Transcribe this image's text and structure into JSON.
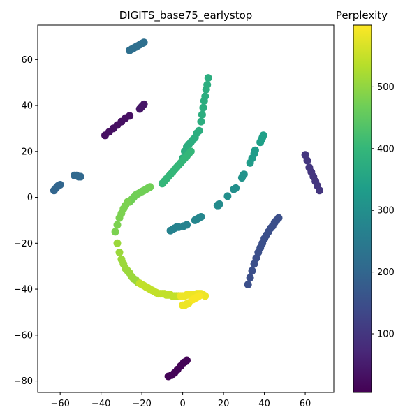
{
  "chart_data": {
    "type": "scatter",
    "title": "DIGITS_base75_earlystop",
    "xlabel": "",
    "ylabel": "",
    "xlim": [
      -71,
      74
    ],
    "ylim": [
      -85,
      75
    ],
    "xticks": [
      -60,
      -40,
      -20,
      0,
      20,
      40,
      60
    ],
    "yticks": [
      -80,
      -60,
      -40,
      -20,
      0,
      20,
      40,
      60
    ],
    "grid": false,
    "colorbar": {
      "label": "Perplexity",
      "range": [
        5,
        600
      ],
      "ticks": [
        100,
        200,
        300,
        400,
        500
      ],
      "colormap": "viridis"
    },
    "point_color_stops": [
      "#440154",
      "#482878",
      "#3e4989",
      "#31688e",
      "#26828e",
      "#1f9e89",
      "#35b779",
      "#6ece58",
      "#b5de2b",
      "#fde725"
    ],
    "series": [
      {
        "c": 10,
        "x": [
          -7,
          -5.5,
          -4,
          -2.5,
          -1,
          0.5,
          2
        ],
        "y": [
          -78,
          -77.5,
          -76.5,
          -75,
          -73.5,
          -72,
          -71
        ]
      },
      {
        "c": 30,
        "x": [
          -38,
          -36,
          -34,
          -32,
          -30,
          -28,
          -26
        ],
        "y": [
          27,
          28.5,
          30,
          31.5,
          33,
          34.5,
          35.5
        ]
      },
      {
        "c": 40,
        "x": [
          -21,
          -20,
          -19
        ],
        "y": [
          38.5,
          39.5,
          40.5
        ]
      },
      {
        "c": 100,
        "x": [
          60,
          61,
          62,
          63,
          64,
          65,
          66,
          67
        ],
        "y": [
          18.5,
          16,
          13,
          11,
          9,
          7,
          5,
          3
        ]
      },
      {
        "c": 150,
        "x": [
          32,
          33,
          34,
          35,
          36,
          37,
          38,
          39,
          40,
          41,
          42,
          43,
          44,
          45,
          46,
          47
        ],
        "y": [
          -38,
          -35,
          -32,
          -29,
          -26.5,
          -24,
          -22,
          -20,
          -18,
          -16.5,
          -15,
          -13.5,
          -12.5,
          -11,
          -10,
          -9
        ]
      },
      {
        "c": 200,
        "x": [
          -63,
          -62,
          -61,
          -60
        ],
        "y": [
          3,
          4,
          5,
          5.5
        ]
      },
      {
        "c": 205,
        "x": [
          -53,
          -52,
          -51,
          -50
        ],
        "y": [
          9.5,
          9.5,
          9,
          9
        ]
      },
      {
        "c": 220,
        "x": [
          -26,
          -25,
          -24,
          -23,
          -22,
          -21,
          -20,
          -19
        ],
        "y": [
          64,
          64.5,
          65,
          65.5,
          66,
          66.5,
          67,
          67.5
        ]
      },
      {
        "c": 270,
        "x": [
          -6,
          -5,
          -4,
          -3,
          -2,
          0.5,
          2
        ],
        "y": [
          -14.5,
          -14,
          -13.5,
          -13,
          -13,
          -12.5,
          -12
        ]
      },
      {
        "c": 280,
        "x": [
          6,
          7,
          8,
          9
        ],
        "y": [
          -10,
          -9.5,
          -9,
          -8.5
        ]
      },
      {
        "c": 290,
        "x": [
          17,
          17.5,
          18
        ],
        "y": [
          -3.5,
          -3.5,
          -3
        ]
      },
      {
        "c": 300,
        "x": [
          22,
          25,
          26
        ],
        "y": [
          0.5,
          3.5,
          4
        ]
      },
      {
        "c": 310,
        "x": [
          29,
          29.5,
          30
        ],
        "y": [
          8.5,
          9.5,
          10
        ]
      },
      {
        "c": 330,
        "x": [
          33,
          34,
          35,
          35.5
        ],
        "y": [
          15,
          17,
          19,
          20.5
        ]
      },
      {
        "c": 340,
        "x": [
          38,
          38.5,
          39,
          39.5
        ],
        "y": [
          24,
          25,
          26,
          27
        ]
      },
      {
        "c": 375,
        "x": [
          0,
          1,
          2,
          3,
          4,
          5,
          6,
          7,
          8,
          9,
          9.5,
          10,
          10.5,
          11,
          11.5,
          12,
          12.5
        ],
        "y": [
          17,
          20,
          22,
          23,
          24,
          25,
          26,
          28,
          29,
          33,
          36,
          39,
          42,
          44,
          47,
          49,
          52
        ]
      },
      {
        "c": 400,
        "x": [
          -10,
          -9,
          -8,
          -7,
          -6,
          -5,
          -4,
          -3,
          -2,
          -1,
          0,
          1,
          2,
          3,
          4
        ],
        "y": [
          6,
          7,
          8,
          9,
          10,
          11,
          12,
          13,
          14,
          15,
          16,
          17,
          18,
          19,
          20
        ]
      },
      {
        "c": 470,
        "x": [
          -26,
          -25,
          -24,
          -23,
          -22,
          -21,
          -20,
          -19,
          -18,
          -17,
          -16
        ],
        "y": [
          -2,
          -1,
          0,
          1,
          1.5,
          2,
          2.5,
          3,
          3.5,
          4,
          4.5
        ]
      },
      {
        "c": 480,
        "x": [
          -33,
          -32,
          -31,
          -30,
          -29,
          -28,
          -27
        ],
        "y": [
          -15,
          -12,
          -9,
          -7,
          -5,
          -3.5,
          -2
        ]
      },
      {
        "c": 510,
        "x": [
          -32,
          -31,
          -30,
          -29,
          -28,
          -27,
          -26,
          -25,
          -24,
          -23,
          -22
        ],
        "y": [
          -20,
          -24,
          -27,
          -29,
          -31,
          -32,
          -33,
          -34.5,
          -35.5,
          -36,
          -37
        ]
      },
      {
        "c": 545,
        "x": [
          -21,
          -20,
          -19,
          -18,
          -17,
          -16,
          -15,
          -14,
          -13,
          -12,
          -11,
          -10,
          -9,
          -8,
          -7,
          -6,
          -5,
          -4,
          -3,
          -2
        ],
        "y": [
          -37.5,
          -38,
          -38.5,
          -39,
          -39.5,
          -40,
          -40.5,
          -41,
          -41.5,
          -42,
          -42,
          -42,
          -42,
          -42.5,
          -42.5,
          -42.5,
          -43,
          -43,
          -43,
          -43
        ]
      },
      {
        "c": 585,
        "x": [
          -1,
          0,
          1,
          2,
          3,
          4,
          5,
          6,
          7,
          8,
          9,
          10,
          11,
          0,
          1,
          2,
          3
        ],
        "y": [
          -43,
          -43,
          -43,
          -42.5,
          -42.5,
          -42.5,
          -42.5,
          -42.5,
          -42,
          -42,
          -42,
          -42.5,
          -43,
          -47,
          -47,
          -46.5,
          -46
        ]
      },
      {
        "c": 595,
        "x": [
          5,
          6,
          7,
          8
        ],
        "y": [
          -44.5,
          -44,
          -43.5,
          -43
        ]
      }
    ]
  }
}
